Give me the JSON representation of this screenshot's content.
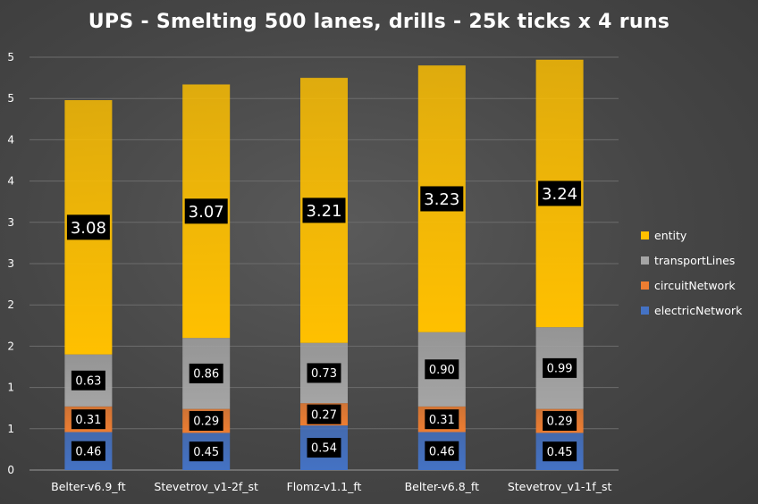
{
  "chart_data": {
    "type": "bar",
    "stacked": true,
    "title": "UPS - Smelting 500 lanes, drills - 25k ticks x 4 runs",
    "xlabel": "",
    "ylabel": "",
    "categories": [
      "Belter-v6.9_ft",
      "Stevetrov_v1-2f_st",
      "Flomz-v1.1_ft",
      "Belter-v6.8_ft",
      "Stevetrov_v1-1f_st"
    ],
    "series": [
      {
        "name": "electricNetwork",
        "color": "#4472c4",
        "values": [
          0.46,
          0.45,
          0.54,
          0.46,
          0.45
        ],
        "labels": [
          "0.46",
          "0.45",
          "0.54",
          "0.46",
          "0.45"
        ]
      },
      {
        "name": "circuitNetwork",
        "color": "#ed7d31",
        "values": [
          0.31,
          0.29,
          0.27,
          0.31,
          0.29
        ],
        "labels": [
          "0.31",
          "0.29",
          "0.27",
          "0.31",
          "0.29"
        ]
      },
      {
        "name": "transportLines",
        "color": "#a5a5a5",
        "values": [
          0.63,
          0.86,
          0.73,
          0.9,
          0.99
        ],
        "labels": [
          "0.63",
          "0.86",
          "0.73",
          "0.90",
          "0.99"
        ]
      },
      {
        "name": "entity",
        "color": "#ffc000",
        "values": [
          3.08,
          3.07,
          3.21,
          3.23,
          3.24
        ],
        "labels": [
          "3.08",
          "3.07",
          "3.21",
          "3.23",
          "3.24"
        ]
      }
    ],
    "legend_order": [
      "entity",
      "transportLines",
      "circuitNetwork",
      "electricNetwork"
    ],
    "legend_position": "right",
    "y_ticks": [
      0,
      0.5,
      1,
      1.5,
      2,
      2.5,
      3,
      3.5,
      4,
      4.5,
      5
    ],
    "y_tick_labels": [
      "0",
      "1",
      "1",
      "2",
      "2",
      "3",
      "3",
      "4",
      "4",
      "5",
      "5"
    ],
    "ylim": [
      0,
      5
    ],
    "grid": true
  }
}
